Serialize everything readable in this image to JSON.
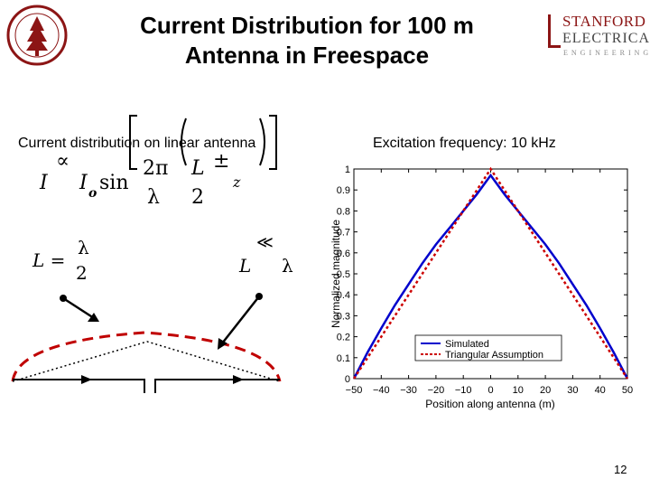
{
  "slide": {
    "title_line1": "Current Distribution for 100 m",
    "title_line2": "Antenna in Freespace",
    "page_number": "12"
  },
  "logo": {
    "line1": "STANFORD",
    "line2": "ELECTRICAL",
    "line3": "ENGINEERING",
    "color": "#8c1515"
  },
  "left_panel": {
    "label": "Current distribution on linear antenna",
    "equation": {
      "lhs": "I",
      "prop": "∝",
      "io": "I",
      "io_sub": "o",
      "sin": "sin",
      "two_pi": "2π",
      "lambda": "λ",
      "L": "L",
      "pm": "±",
      "two": "2",
      "z": "z"
    },
    "condition": {
      "L_eq": "L =",
      "lambda": "λ",
      "two": "2",
      "L": "L",
      "ll": "≪",
      "lambda2": "λ"
    },
    "colors": {
      "dash": "#c00000",
      "dots": "#000000",
      "arrow": "#000000"
    }
  },
  "right_panel": {
    "label": "Excitation frequency:  10 kHz"
  },
  "chart_data": {
    "type": "line",
    "title": "",
    "xlabel": "Position along antenna (m)",
    "ylabel": "Normalized magnitude",
    "xlim": [
      -50,
      50
    ],
    "ylim": [
      0,
      1
    ],
    "xticks": [
      -50,
      -40,
      -30,
      -20,
      -10,
      0,
      10,
      20,
      30,
      40,
      50
    ],
    "yticks": [
      0,
      0.1,
      0.2,
      0.3,
      0.4,
      0.5,
      0.6,
      0.7,
      0.8,
      0.9,
      1
    ],
    "ytick_labels": [
      "0",
      "0.1",
      "0.2",
      "0.3",
      "0.4",
      "0.5",
      "0.6",
      "0.7",
      "0.8",
      "0.9",
      "1"
    ],
    "legend_position": "bottom-center",
    "series": [
      {
        "name": "Simulated",
        "color": "#0000cc",
        "style": "solid",
        "x": [
          -50,
          -45,
          -40,
          -35,
          -30,
          -25,
          -20,
          -15,
          -10,
          -5,
          0,
          5,
          10,
          15,
          20,
          25,
          30,
          35,
          40,
          45,
          50
        ],
        "y": [
          0.0,
          0.125,
          0.24,
          0.35,
          0.45,
          0.55,
          0.64,
          0.72,
          0.8,
          0.88,
          0.97,
          0.88,
          0.8,
          0.72,
          0.64,
          0.55,
          0.45,
          0.35,
          0.24,
          0.125,
          0.0
        ]
      },
      {
        "name": "Triangular Assumption",
        "color": "#cc0000",
        "style": "dotted",
        "x": [
          -50,
          0,
          50
        ],
        "y": [
          0,
          1,
          0
        ]
      }
    ]
  }
}
